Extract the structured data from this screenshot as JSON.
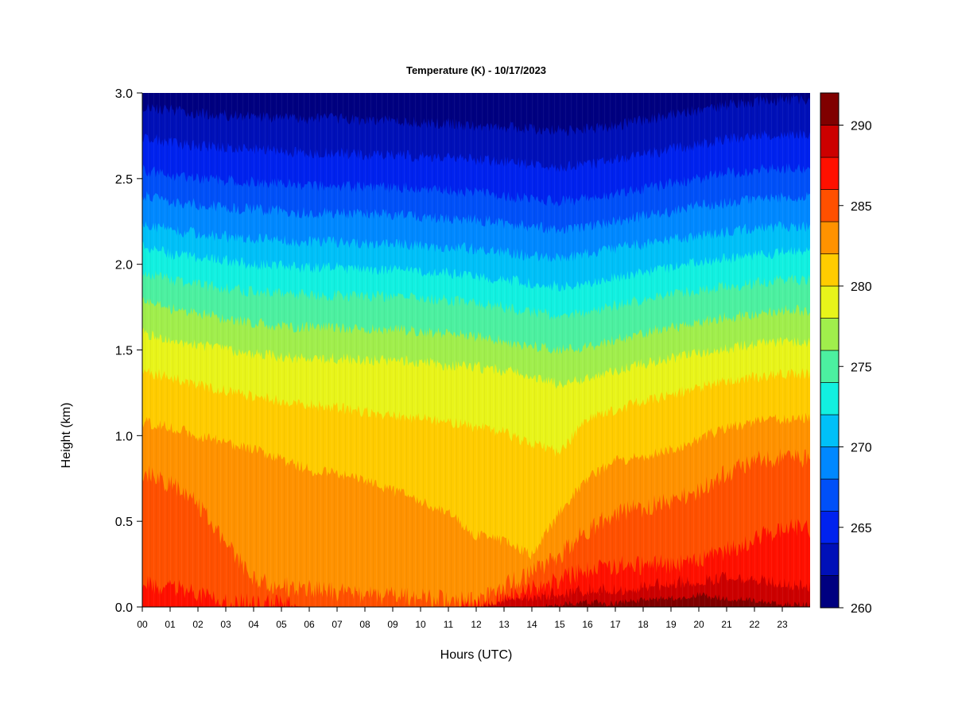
{
  "chart_data": {
    "type": "heatmap",
    "title": "Temperature (K) - 10/17/2023",
    "xlabel": "Hours (UTC)",
    "ylabel": "Height (km)",
    "x_ticks": [
      "00",
      "01",
      "02",
      "03",
      "04",
      "05",
      "06",
      "07",
      "08",
      "09",
      "10",
      "11",
      "12",
      "13",
      "14",
      "15",
      "16",
      "17",
      "18",
      "19",
      "20",
      "21",
      "22",
      "23"
    ],
    "xlim": [
      0,
      24
    ],
    "y_ticks": [
      "0.0",
      "0.5",
      "1.0",
      "1.5",
      "2.0",
      "2.5",
      "3.0"
    ],
    "ylim": [
      0,
      3
    ],
    "colorbar": {
      "range": [
        260,
        292
      ],
      "tick_labels": [
        "260",
        "265",
        "270",
        "275",
        "280",
        "285",
        "290"
      ],
      "levels": [
        {
          "min": 260,
          "max": 262,
          "color": "#000080"
        },
        {
          "min": 262,
          "max": 264,
          "color": "#0010b8"
        },
        {
          "min": 264,
          "max": 266,
          "color": "#0022ee"
        },
        {
          "min": 266,
          "max": 268,
          "color": "#0050f8"
        },
        {
          "min": 268,
          "max": 270,
          "color": "#0088ff"
        },
        {
          "min": 270,
          "max": 272,
          "color": "#00c0f8"
        },
        {
          "min": 272,
          "max": 274,
          "color": "#12f0e0"
        },
        {
          "min": 274,
          "max": 276,
          "color": "#4cf0a0"
        },
        {
          "min": 276,
          "max": 278,
          "color": "#a0ee4c"
        },
        {
          "min": 278,
          "max": 280,
          "color": "#e8f41a"
        },
        {
          "min": 280,
          "max": 282,
          "color": "#ffcc00"
        },
        {
          "min": 282,
          "max": 284,
          "color": "#ff9200"
        },
        {
          "min": 284,
          "max": 286,
          "color": "#ff5000"
        },
        {
          "min": 286,
          "max": 288,
          "color": "#ff1000"
        },
        {
          "min": 288,
          "max": 290,
          "color": "#cc0000"
        },
        {
          "min": 290,
          "max": 292,
          "color": "#800000"
        }
      ]
    },
    "level_heights_km": {
      "hours": [
        0,
        1,
        2,
        3,
        4,
        5,
        6,
        7,
        8,
        9,
        10,
        11,
        12,
        13,
        14,
        15,
        16,
        17,
        18,
        19,
        20,
        21,
        22,
        23,
        24
      ],
      "rows": [
        {
          "temp": 290,
          "heights": [
            0,
            0,
            0,
            0,
            0,
            0,
            0,
            0,
            0,
            0,
            0,
            0,
            0,
            0,
            0,
            0.01,
            0.03,
            0.02,
            0.04,
            0.05,
            0.07,
            0.05,
            0.04,
            0.02,
            0.01
          ]
        },
        {
          "temp": 288,
          "heights": [
            0,
            0,
            0,
            0,
            0,
            0,
            0,
            0,
            0,
            0,
            0,
            0,
            0,
            0.02,
            0.05,
            0.06,
            0.08,
            0.08,
            0.1,
            0.12,
            0.14,
            0.15,
            0.14,
            0.12,
            0.1
          ]
        },
        {
          "temp": 286,
          "heights": [
            0.14,
            0.11,
            0.08,
            0.03,
            0.02,
            0.01,
            0,
            0,
            0,
            0,
            0,
            0,
            0.01,
            0.06,
            0.1,
            0.16,
            0.22,
            0.24,
            0.24,
            0.25,
            0.28,
            0.33,
            0.4,
            0.46,
            0.45
          ]
        },
        {
          "temp": 284,
          "heights": [
            0.79,
            0.72,
            0.6,
            0.38,
            0.16,
            0.12,
            0.1,
            0.09,
            0.07,
            0.06,
            0.05,
            0.04,
            0.03,
            0.12,
            0.2,
            0.3,
            0.45,
            0.55,
            0.58,
            0.62,
            0.68,
            0.78,
            0.85,
            0.87,
            0.86
          ]
        },
        {
          "temp": 282,
          "heights": [
            1.08,
            1.05,
            1.0,
            0.96,
            0.92,
            0.86,
            0.8,
            0.78,
            0.74,
            0.68,
            0.62,
            0.55,
            0.42,
            0.38,
            0.3,
            0.55,
            0.75,
            0.85,
            0.88,
            0.92,
            0.98,
            1.05,
            1.08,
            1.1,
            1.1
          ]
        },
        {
          "temp": 280,
          "heights": [
            1.38,
            1.34,
            1.3,
            1.26,
            1.23,
            1.2,
            1.18,
            1.16,
            1.14,
            1.12,
            1.1,
            1.08,
            1.05,
            1.02,
            0.95,
            0.9,
            1.1,
            1.15,
            1.2,
            1.24,
            1.28,
            1.32,
            1.34,
            1.36,
            1.36
          ]
        },
        {
          "temp": 278,
          "heights": [
            1.6,
            1.56,
            1.53,
            1.5,
            1.48,
            1.46,
            1.45,
            1.45,
            1.44,
            1.44,
            1.43,
            1.41,
            1.4,
            1.38,
            1.34,
            1.3,
            1.34,
            1.38,
            1.42,
            1.45,
            1.48,
            1.51,
            1.53,
            1.55,
            1.55
          ]
        },
        {
          "temp": 276,
          "heights": [
            1.78,
            1.74,
            1.71,
            1.68,
            1.66,
            1.64,
            1.63,
            1.63,
            1.62,
            1.62,
            1.61,
            1.59,
            1.58,
            1.55,
            1.52,
            1.5,
            1.52,
            1.56,
            1.6,
            1.63,
            1.66,
            1.69,
            1.71,
            1.73,
            1.73
          ]
        },
        {
          "temp": 274,
          "heights": [
            1.95,
            1.91,
            1.88,
            1.86,
            1.84,
            1.83,
            1.82,
            1.82,
            1.81,
            1.81,
            1.8,
            1.79,
            1.77,
            1.75,
            1.72,
            1.7,
            1.72,
            1.76,
            1.79,
            1.82,
            1.85,
            1.87,
            1.89,
            1.91,
            1.91
          ]
        },
        {
          "temp": 272,
          "heights": [
            2.1,
            2.06,
            2.04,
            2.02,
            2.0,
            1.99,
            1.98,
            1.98,
            1.97,
            1.97,
            1.96,
            1.95,
            1.93,
            1.91,
            1.89,
            1.87,
            1.89,
            1.92,
            1.95,
            1.98,
            2.01,
            2.03,
            2.05,
            2.07,
            2.07
          ]
        },
        {
          "temp": 270,
          "heights": [
            2.24,
            2.2,
            2.18,
            2.16,
            2.15,
            2.14,
            2.13,
            2.13,
            2.12,
            2.12,
            2.11,
            2.1,
            2.09,
            2.07,
            2.05,
            2.04,
            2.06,
            2.09,
            2.12,
            2.14,
            2.17,
            2.19,
            2.21,
            2.22,
            2.22
          ]
        },
        {
          "temp": 268,
          "heights": [
            2.4,
            2.37,
            2.35,
            2.33,
            2.32,
            2.31,
            2.3,
            2.3,
            2.29,
            2.29,
            2.28,
            2.27,
            2.26,
            2.24,
            2.22,
            2.2,
            2.22,
            2.25,
            2.28,
            2.31,
            2.34,
            2.36,
            2.38,
            2.39,
            2.39
          ]
        },
        {
          "temp": 266,
          "heights": [
            2.55,
            2.52,
            2.5,
            2.49,
            2.48,
            2.47,
            2.46,
            2.46,
            2.45,
            2.45,
            2.44,
            2.43,
            2.42,
            2.4,
            2.38,
            2.37,
            2.38,
            2.41,
            2.44,
            2.47,
            2.5,
            2.53,
            2.55,
            2.56,
            2.56
          ]
        },
        {
          "temp": 264,
          "heights": [
            2.74,
            2.71,
            2.69,
            2.68,
            2.67,
            2.66,
            2.65,
            2.65,
            2.64,
            2.64,
            2.63,
            2.62,
            2.61,
            2.6,
            2.58,
            2.57,
            2.58,
            2.61,
            2.64,
            2.67,
            2.7,
            2.73,
            2.75,
            2.76,
            2.76
          ]
        },
        {
          "temp": 262,
          "heights": [
            2.92,
            2.9,
            2.88,
            2.87,
            2.86,
            2.85,
            2.85,
            2.85,
            2.84,
            2.84,
            2.83,
            2.82,
            2.81,
            2.8,
            2.79,
            2.78,
            2.79,
            2.81,
            2.84,
            2.87,
            2.9,
            2.93,
            2.95,
            2.96,
            2.96
          ]
        }
      ]
    }
  }
}
